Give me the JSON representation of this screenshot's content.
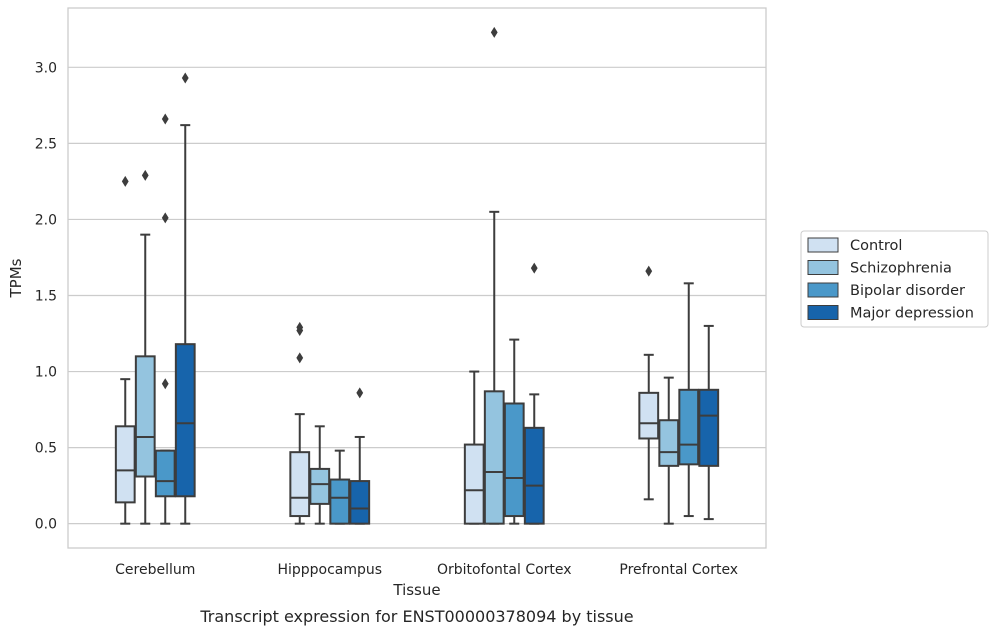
{
  "chart_data": {
    "type": "box",
    "xlabel": "Tissue",
    "ylabel": "TPMs",
    "caption": "Transcript expression for ENST00000378094 by tissue",
    "ylim": [
      -0.16,
      3.39
    ],
    "yticks": [
      0.0,
      0.5,
      1.0,
      1.5,
      2.0,
      2.5,
      3.0
    ],
    "ytick_labels": [
      "0.0",
      "0.5",
      "1.0",
      "1.5",
      "2.0",
      "2.5",
      "3.0"
    ],
    "grid": true,
    "legend_position": "right",
    "categories": [
      "Cerebellum",
      "Hipppocampus",
      "Orbitofontal Cortex",
      "Prefrontal Cortex"
    ],
    "series": [
      {
        "name": "Control",
        "color": "#d0e1f2",
        "boxes": [
          {
            "whislo": 0.0,
            "q1": 0.14,
            "med": 0.35,
            "q3": 0.64,
            "whishi": 0.95,
            "fliers": [
              2.25
            ]
          },
          {
            "whislo": 0.0,
            "q1": 0.05,
            "med": 0.17,
            "q3": 0.47,
            "whishi": 0.72,
            "fliers": [
              1.09,
              1.27,
              1.29
            ]
          },
          {
            "whislo": 0.0,
            "q1": 0.0,
            "med": 0.22,
            "q3": 0.52,
            "whishi": 1.0,
            "fliers": []
          },
          {
            "whislo": 0.16,
            "q1": 0.56,
            "med": 0.66,
            "q3": 0.86,
            "whishi": 1.11,
            "fliers": [
              1.66
            ]
          }
        ]
      },
      {
        "name": "Schizophrenia",
        "color": "#94c4df",
        "boxes": [
          {
            "whislo": 0.0,
            "q1": 0.31,
            "med": 0.57,
            "q3": 1.1,
            "whishi": 1.9,
            "fliers": [
              2.29
            ]
          },
          {
            "whislo": 0.0,
            "q1": 0.13,
            "med": 0.26,
            "q3": 0.36,
            "whishi": 0.64,
            "fliers": []
          },
          {
            "whislo": 0.0,
            "q1": 0.0,
            "med": 0.34,
            "q3": 0.87,
            "whishi": 2.05,
            "fliers": [
              3.23
            ]
          },
          {
            "whislo": 0.0,
            "q1": 0.38,
            "med": 0.47,
            "q3": 0.68,
            "whishi": 0.96,
            "fliers": []
          }
        ]
      },
      {
        "name": "Bipolar disorder",
        "color": "#4a98c9",
        "boxes": [
          {
            "whislo": 0.0,
            "q1": 0.18,
            "med": 0.28,
            "q3": 0.48,
            "whishi": 0.48,
            "fliers": [
              0.92,
              2.01,
              2.66
            ]
          },
          {
            "whislo": 0.0,
            "q1": 0.0,
            "med": 0.17,
            "q3": 0.29,
            "whishi": 0.48,
            "fliers": []
          },
          {
            "whislo": 0.0,
            "q1": 0.05,
            "med": 0.3,
            "q3": 0.79,
            "whishi": 1.21,
            "fliers": []
          },
          {
            "whislo": 0.05,
            "q1": 0.39,
            "med": 0.52,
            "q3": 0.88,
            "whishi": 1.58,
            "fliers": []
          }
        ]
      },
      {
        "name": "Major depression",
        "color": "#1764ab",
        "boxes": [
          {
            "whislo": 0.0,
            "q1": 0.18,
            "med": 0.66,
            "q3": 1.18,
            "whishi": 2.62,
            "fliers": [
              2.93
            ]
          },
          {
            "whislo": 0.0,
            "q1": 0.0,
            "med": 0.1,
            "q3": 0.28,
            "whishi": 0.57,
            "fliers": [
              0.86
            ]
          },
          {
            "whislo": 0.0,
            "q1": 0.0,
            "med": 0.25,
            "q3": 0.63,
            "whishi": 0.85,
            "fliers": [
              1.68
            ]
          },
          {
            "whislo": 0.03,
            "q1": 0.38,
            "med": 0.71,
            "q3": 0.88,
            "whishi": 1.3,
            "fliers": []
          }
        ]
      }
    ]
  }
}
